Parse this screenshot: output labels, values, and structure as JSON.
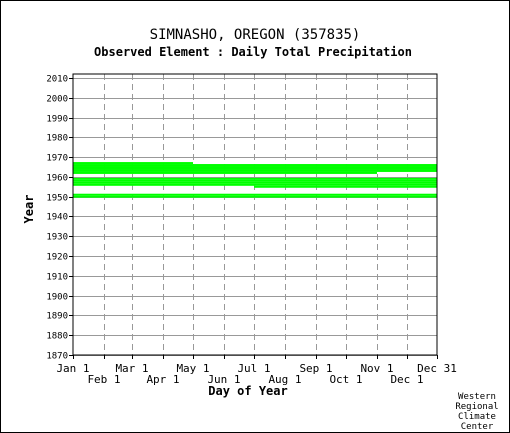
{
  "chart_data": {
    "type": "bar",
    "title": "SIMNASHO, OREGON   (357835)",
    "subtitle": "Observed Element : Daily Total Precipitation",
    "xlabel": "Day of Year",
    "ylabel": "Year",
    "xlim": [
      1,
      365
    ],
    "ylim": [
      1870,
      2012
    ],
    "y_ticks": [
      1870,
      1880,
      1890,
      1900,
      1910,
      1920,
      1930,
      1940,
      1950,
      1960,
      1970,
      1980,
      1990,
      2000,
      2010
    ],
    "x_ticks_upper": [
      {
        "label": "Jan 1",
        "day": 1
      },
      {
        "label": "Mar 1",
        "day": 60
      },
      {
        "label": "May 1",
        "day": 121
      },
      {
        "label": "Jul 1",
        "day": 182
      },
      {
        "label": "Sep 1",
        "day": 244
      },
      {
        "label": "Nov 1",
        "day": 305
      },
      {
        "label": "Dec 31",
        "day": 365
      }
    ],
    "x_ticks_lower": [
      {
        "label": "Feb 1",
        "day": 32
      },
      {
        "label": "Apr 1",
        "day": 91
      },
      {
        "label": "Jun 1",
        "day": 152
      },
      {
        "label": "Aug 1",
        "day": 213
      },
      {
        "label": "Oct 1",
        "day": 274
      },
      {
        "label": "Dec 1",
        "day": 335
      }
    ],
    "grid": true,
    "series_color": "#00ff00",
    "observed_periods": [
      {
        "year": 1950,
        "start_day": 1,
        "end_day": 365
      },
      {
        "year": 1951,
        "start_day": 1,
        "end_day": 365
      },
      {
        "year": 1955,
        "start_day": 182,
        "end_day": 365
      },
      {
        "year": 1956,
        "start_day": 1,
        "end_day": 365
      },
      {
        "year": 1957,
        "start_day": 1,
        "end_day": 365
      },
      {
        "year": 1958,
        "start_day": 1,
        "end_day": 365
      },
      {
        "year": 1959,
        "start_day": 1,
        "end_day": 365
      },
      {
        "year": 1962,
        "start_day": 1,
        "end_day": 305
      },
      {
        "year": 1963,
        "start_day": 1,
        "end_day": 365
      },
      {
        "year": 1964,
        "start_day": 1,
        "end_day": 365
      },
      {
        "year": 1965,
        "start_day": 1,
        "end_day": 365
      },
      {
        "year": 1966,
        "start_day": 1,
        "end_day": 365
      },
      {
        "year": 1967,
        "start_day": 1,
        "end_day": 121
      }
    ]
  },
  "credit": {
    "line1": "Western",
    "line2": "Regional",
    "line3": "Climate",
    "line4": "Center"
  }
}
